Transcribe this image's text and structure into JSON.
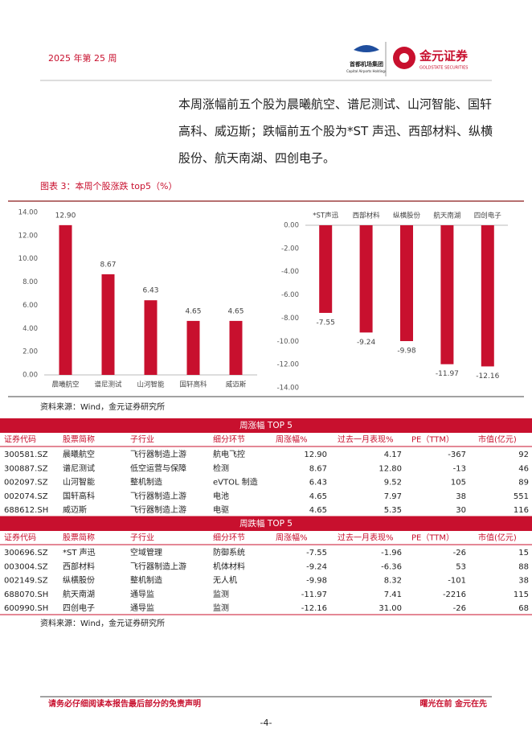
{
  "header": {
    "week": "2025 年第 25 周",
    "logo1": "首都机场集团",
    "logo1_sub": "Capital Airports Holdings",
    "logo2": "金元证券",
    "logo2_sub": "GOLDSTATE SECURITIES"
  },
  "body": {
    "lines": [
      "本周涨幅前五个股为晨曦航空、谱尼测试、山河智能、国轩",
      "高科、威迈斯；跌幅前五个股为*ST 声迅、西部材料、纵横",
      "股份、航天南湖、四创电子。"
    ]
  },
  "figure_title": "图表 3：本周个股涨跌 top5（%）",
  "chart_data": [
    {
      "type": "bar",
      "categories": [
        "晨曦航空",
        "谱尼测试",
        "山河智能",
        "国轩高科",
        "威迈斯"
      ],
      "values": [
        12.9,
        8.67,
        6.43,
        4.65,
        4.65
      ],
      "value_labels": [
        "12.90",
        "8.67",
        "6.43",
        "4.65",
        "4.65"
      ],
      "color": "#c8102e",
      "ylim": [
        0,
        14
      ],
      "yticks": [
        {
          "value": 0,
          "label": "0.00"
        },
        {
          "value": 2,
          "label": "2.00"
        },
        {
          "value": 4,
          "label": "4.00"
        },
        {
          "value": 6,
          "label": "6.00"
        },
        {
          "value": 8,
          "label": "8.00"
        },
        {
          "value": 10,
          "label": "10.00"
        },
        {
          "value": 12,
          "label": "12.00"
        },
        {
          "value": 14,
          "label": "14.00"
        }
      ]
    },
    {
      "type": "bar",
      "categories": [
        "*ST声迅",
        "西部材料",
        "纵横股份",
        "航天南湖",
        "四创电子"
      ],
      "values": [
        -7.55,
        -9.24,
        -9.98,
        -11.97,
        -12.16
      ],
      "color": "#c8102e",
      "ylim": [
        -14,
        0
      ],
      "yticks": [
        {
          "value": 0,
          "label": "0.00"
        },
        {
          "value": -2,
          "label": "-2.00"
        },
        {
          "value": -4,
          "label": "-4.00"
        },
        {
          "value": -6,
          "label": "-6.00"
        },
        {
          "value": -8,
          "label": "-8.00"
        },
        {
          "value": -10,
          "label": "-10.00"
        },
        {
          "value": -12,
          "label": "-12.00"
        },
        {
          "value": -14,
          "label": "-14.00"
        }
      ]
    }
  ],
  "source1": "资料来源：Wind，金元证券研究所",
  "tables": [
    {
      "title": "周涨幅 TOP 5",
      "header": [
        "证券代码",
        "股票简称",
        "子行业",
        "细分环节",
        "周涨幅%",
        "过去一月表现%",
        "PE（TTM）",
        "市值(亿元)"
      ],
      "rows": [
        [
          "300581.SZ",
          "晨曦航空",
          "飞行器制造上游",
          "航电飞控",
          "12.90",
          "4.17",
          "-367",
          "92"
        ],
        [
          "300887.SZ",
          "谱尼测试",
          "低空运营与保障",
          "检测",
          "8.67",
          "12.80",
          "-13",
          "46"
        ],
        [
          "002097.SZ",
          "山河智能",
          "整机制造",
          "eVTOL 制造",
          "6.43",
          "9.52",
          "105",
          "89"
        ],
        [
          "002074.SZ",
          "国轩高科",
          "飞行器制造上游",
          "电池",
          "4.65",
          "7.97",
          "38",
          "551"
        ],
        [
          "688612.SH",
          "威迈斯",
          "飞行器制造上游",
          "电驱",
          "4.65",
          "5.35",
          "30",
          "116"
        ]
      ]
    },
    {
      "title": "周跌幅 TOP 5",
      "header": [
        "证券代码",
        "股票简称",
        "子行业",
        "细分环节",
        "周涨幅%",
        "过去一月表现%",
        "PE（TTM）",
        "市值(亿元)"
      ],
      "rows": [
        [
          "300696.SZ",
          "*ST 声迅",
          "空域管理",
          "防御系统",
          "-7.55",
          "-1.96",
          "-26",
          "15"
        ],
        [
          "003004.SZ",
          "西部材料",
          "飞行器制造上游",
          "机体材料",
          "-9.24",
          "-6.36",
          "53",
          "88"
        ],
        [
          "002149.SZ",
          "纵横股份",
          "整机制造",
          "无人机",
          "-9.98",
          "8.32",
          "-101",
          "38"
        ],
        [
          "688070.SH",
          "航天南湖",
          "通导监",
          "监测",
          "-11.97",
          "7.41",
          "-2216",
          "115"
        ],
        [
          "600990.SH",
          "四创电子",
          "通导监",
          "监测",
          "-12.16",
          "31.00",
          "-26",
          "68"
        ]
      ]
    }
  ],
  "source2": "资料来源：Wind，金元证券研究所",
  "footer": {
    "disclaimer": "请务必仔细阅读本报告最后部分的免责声明",
    "slogan": "曙光在前 金元在先",
    "page": "-4-"
  }
}
